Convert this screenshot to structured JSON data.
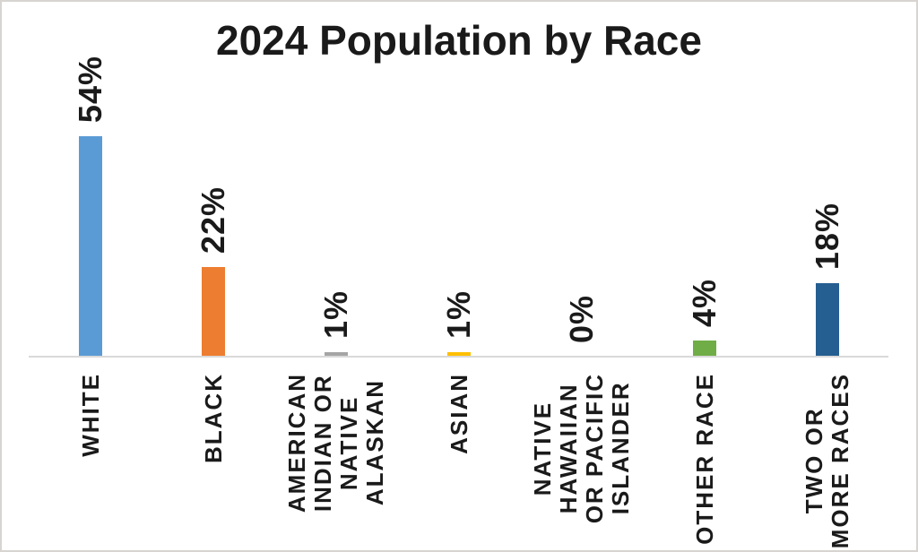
{
  "frame": {
    "background": "#ffffff",
    "border_color": "#d7d4d1",
    "text_color": "#1a1a1a"
  },
  "chart_data": {
    "type": "bar",
    "title": "2024 Population by Race",
    "categories": [
      "WHITE",
      "BLACK",
      "AMERICAN INDIAN OR NATIVE ALASKAN",
      "ASIAN",
      "NATIVE HAWAIIAN OR PACIFIC ISLANDER",
      "OTHER RACE",
      "TWO OR MORE RACES"
    ],
    "category_lines": [
      [
        "WHITE"
      ],
      [
        "BLACK"
      ],
      [
        "AMERICAN",
        "INDIAN OR",
        "NATIVE",
        "ALASKAN"
      ],
      [
        "ASIAN"
      ],
      [
        "NATIVE",
        "HAWAIIAN",
        "OR PACIFIC",
        "ISLANDER"
      ],
      [
        "OTHER RACE"
      ],
      [
        "TWO OR",
        "MORE RACES"
      ]
    ],
    "values": [
      54,
      22,
      1,
      1,
      0,
      4,
      18
    ],
    "data_labels": [
      "54%",
      "22%",
      "1%",
      "1%",
      "0%",
      "4%",
      "18%"
    ],
    "bar_colors": [
      "#5B9BD5",
      "#ED7D31",
      "#A5A5A5",
      "#FFC000",
      "#4472C4",
      "#70AD47",
      "#255E91"
    ],
    "xlabel": "",
    "ylabel": "",
    "ylim": [
      0,
      60
    ],
    "grid": false,
    "legend": false,
    "label_rotation": 90,
    "axis_line_color": "#d9d9d9"
  }
}
